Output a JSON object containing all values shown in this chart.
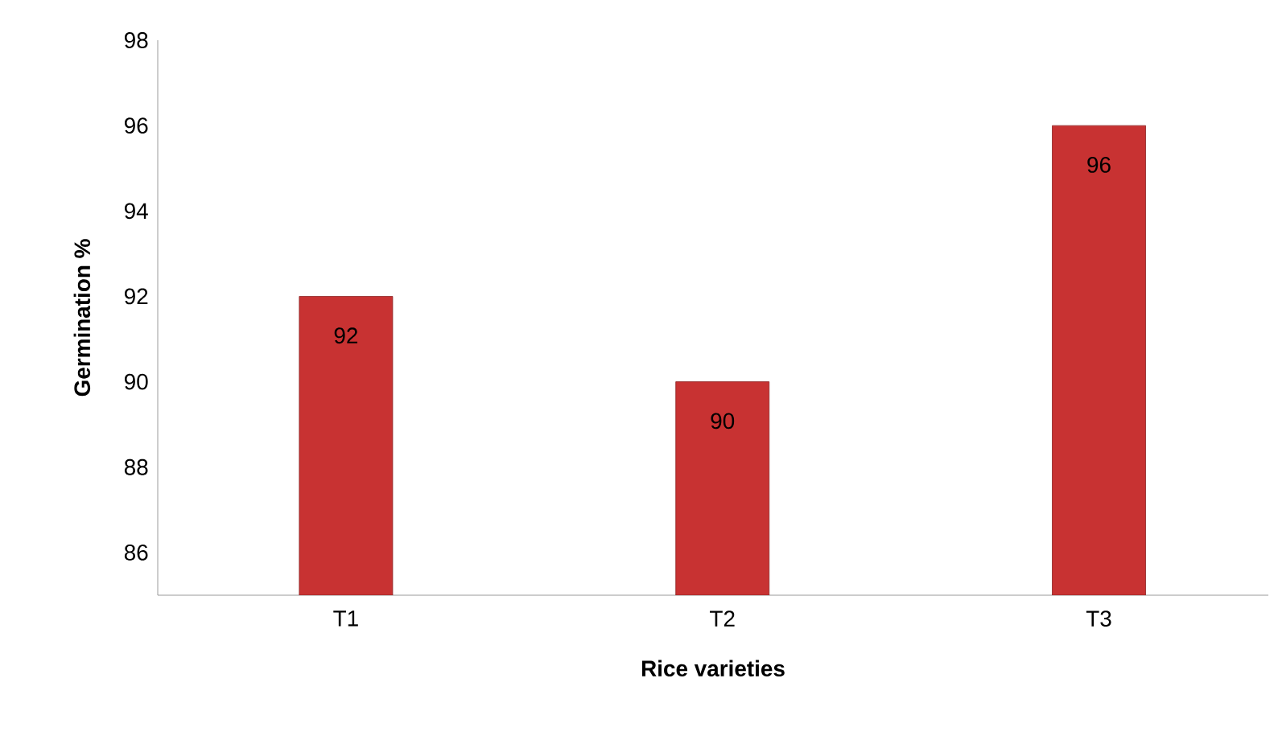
{
  "chart_data": {
    "type": "bar",
    "xlabel": "Rice varieties",
    "ylabel": "Germination %",
    "categories": [
      "T1",
      "T2",
      "T3"
    ],
    "values": [
      92,
      90,
      96
    ],
    "color": "#c83232",
    "ylim": [
      85,
      98
    ],
    "yticks": [
      86,
      88,
      90,
      92,
      94,
      96,
      98
    ],
    "data_labels": true,
    "grid": false
  }
}
